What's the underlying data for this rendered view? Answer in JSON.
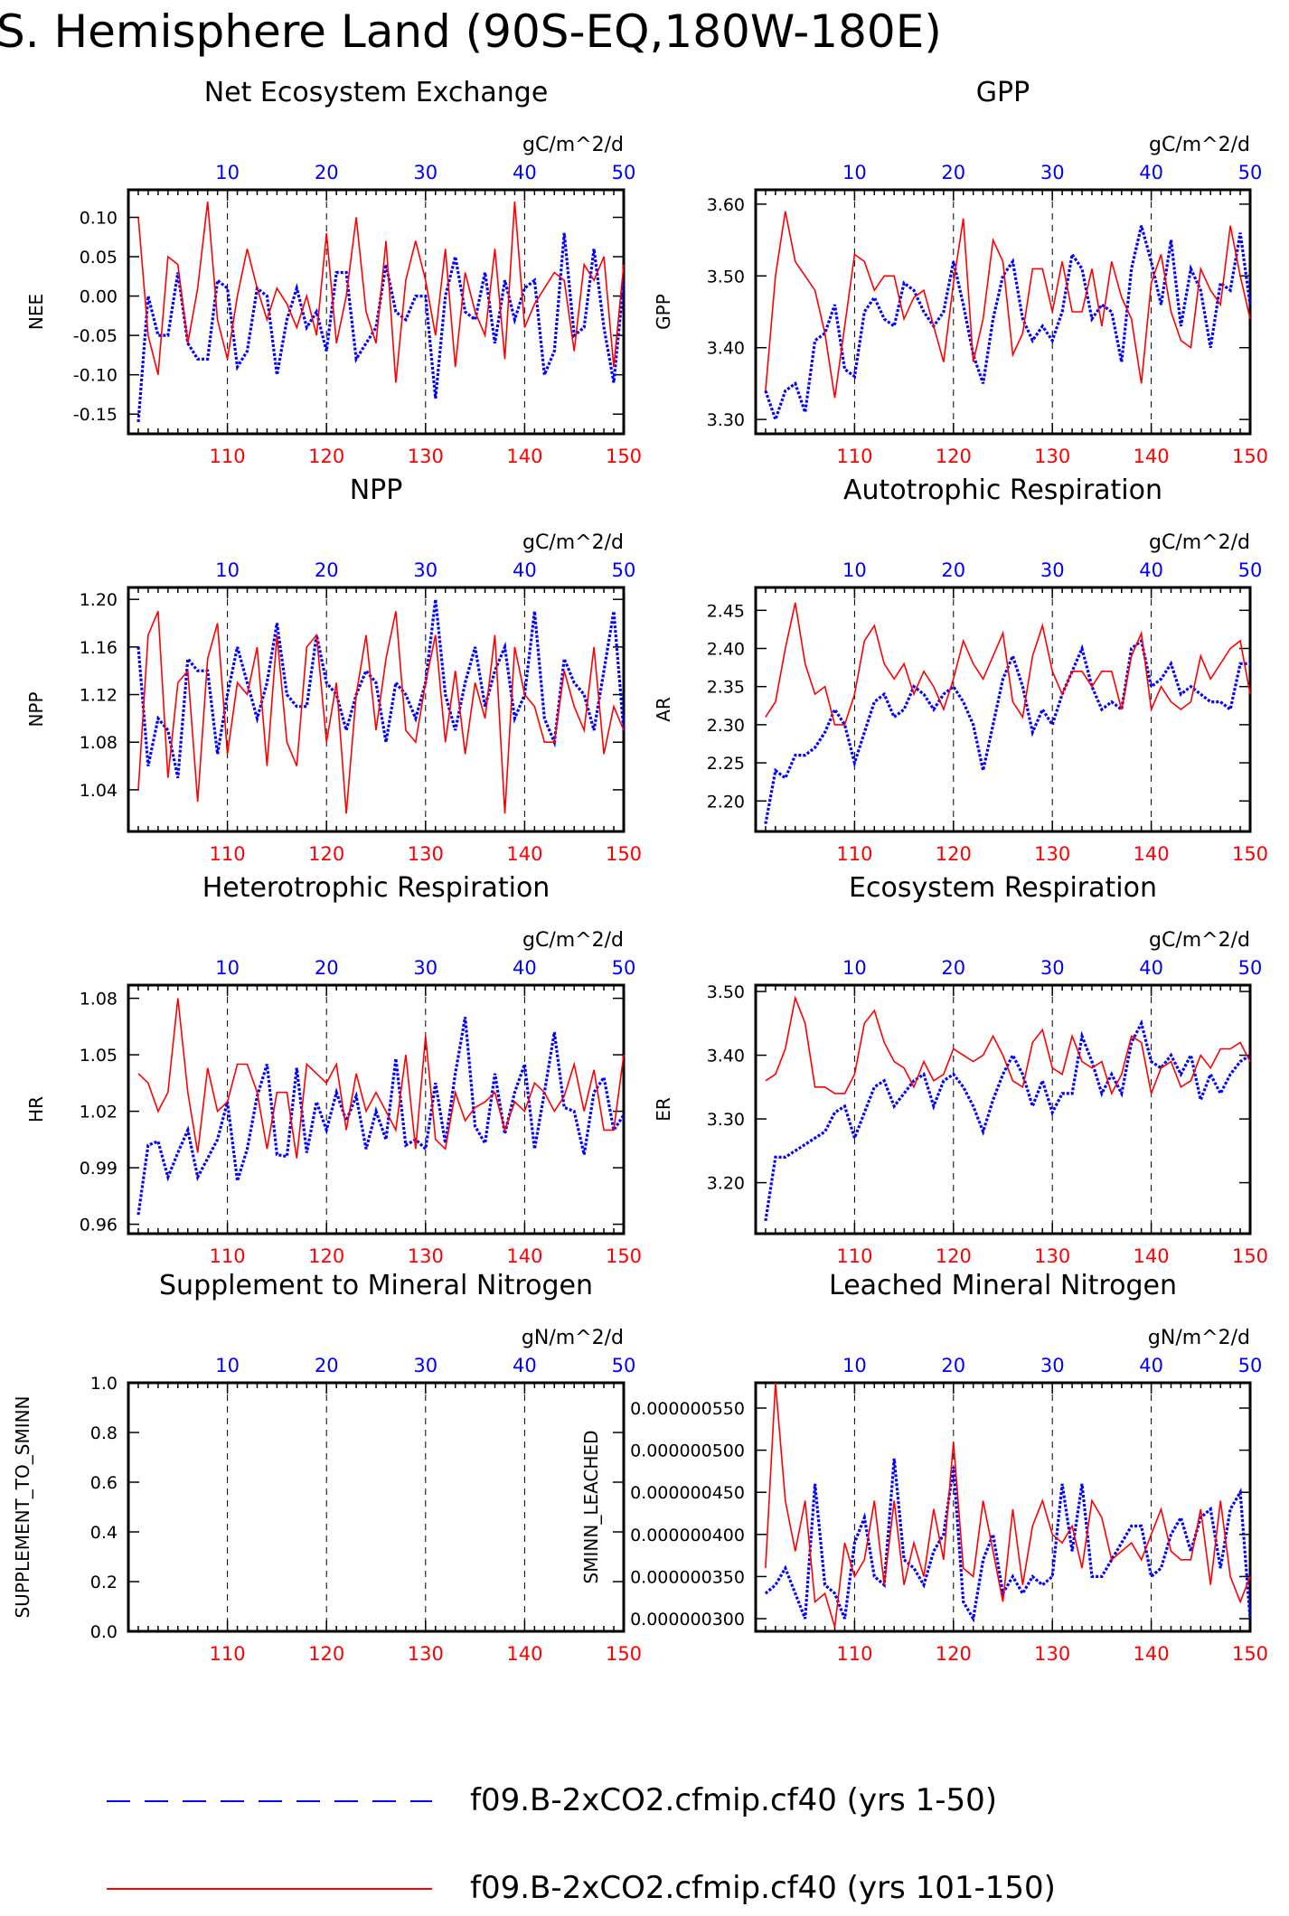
{
  "page_title": "S. Hemisphere Land (90S-EQ,180W-180E)",
  "legend": [
    {
      "label": "f09.B-2xCO2.cfmip.cf40 (yrs 1-50)",
      "color": "#0000ff",
      "style": "dashed"
    },
    {
      "label": "f09.B-2xCO2.cfmip.cf40 (yrs 101-150)",
      "color": "#ff0000",
      "style": "solid"
    }
  ],
  "colors": {
    "blue_series": "#0000ff",
    "red_series": "#ff0000",
    "axis": "#000000"
  },
  "chart_data": [
    {
      "type": "line",
      "title": "Net Ecosystem Exchange",
      "units": "gC/m^2/d",
      "ylabel": "NEE",
      "ylim": [
        -0.175,
        0.135
      ],
      "yticks": [
        -0.15,
        -0.1,
        -0.05,
        0.0,
        0.05,
        0.1
      ],
      "ytick_labels": [
        "-0.15",
        "-0.10",
        "-0.05",
        "0.00",
        "0.05",
        "0.10"
      ],
      "x_bottom_ticks": [
        "110",
        "120",
        "130",
        "140",
        "150"
      ],
      "x_top_ticks": [
        "10",
        "20",
        "30",
        "40",
        "50"
      ],
      "grid": "dashed vertical at 110,120,130,140",
      "series": [
        {
          "values": [
            -0.16,
            0.0,
            -0.05,
            -0.05,
            0.03,
            -0.06,
            -0.08,
            -0.08,
            0.02,
            0.01,
            -0.09,
            -0.07,
            0.01,
            0.0,
            -0.1,
            -0.03,
            0.01,
            -0.04,
            -0.02,
            -0.07,
            0.03,
            0.03,
            -0.08,
            -0.06,
            -0.04,
            0.04,
            -0.02,
            -0.03,
            0.0,
            0.0,
            -0.13,
            0.0,
            0.05,
            -0.02,
            -0.03,
            0.03,
            -0.06,
            0.02,
            -0.03,
            0.01,
            0.02,
            -0.1,
            -0.07,
            0.08,
            -0.05,
            -0.04,
            0.06,
            -0.04,
            -0.11,
            0.02
          ]
        },
        {
          "values": [
            0.1,
            -0.05,
            -0.1,
            0.05,
            0.04,
            -0.06,
            0.01,
            0.12,
            -0.03,
            -0.08,
            0.0,
            0.06,
            0.01,
            -0.03,
            0.01,
            -0.01,
            -0.04,
            0.0,
            -0.05,
            0.08,
            -0.06,
            0.0,
            0.1,
            -0.02,
            -0.06,
            0.07,
            -0.11,
            0.02,
            0.07,
            0.02,
            -0.05,
            0.06,
            -0.09,
            0.03,
            -0.02,
            -0.05,
            0.06,
            -0.08,
            0.12,
            -0.04,
            -0.01,
            0.01,
            0.03,
            0.02,
            -0.07,
            0.04,
            0.02,
            0.05,
            -0.09,
            0.04
          ]
        }
      ]
    },
    {
      "type": "line",
      "title": "GPP",
      "units": "gC/m^2/d",
      "ylabel": "GPP",
      "ylim": [
        3.28,
        3.62
      ],
      "yticks": [
        3.3,
        3.4,
        3.5,
        3.6
      ],
      "ytick_labels": [
        "3.30",
        "3.40",
        "3.50",
        "3.60"
      ],
      "x_bottom_ticks": [
        "110",
        "120",
        "130",
        "140",
        "150"
      ],
      "x_top_ticks": [
        "10",
        "20",
        "30",
        "40",
        "50"
      ],
      "grid": "dashed vertical at 110,120,130,140",
      "series": [
        {
          "values": [
            3.34,
            3.3,
            3.34,
            3.35,
            3.31,
            3.41,
            3.42,
            3.46,
            3.37,
            3.36,
            3.45,
            3.47,
            3.44,
            3.43,
            3.49,
            3.48,
            3.45,
            3.43,
            3.45,
            3.52,
            3.46,
            3.39,
            3.35,
            3.44,
            3.5,
            3.52,
            3.44,
            3.41,
            3.43,
            3.41,
            3.45,
            3.53,
            3.51,
            3.44,
            3.46,
            3.45,
            3.38,
            3.51,
            3.57,
            3.52,
            3.46,
            3.55,
            3.43,
            3.51,
            3.48,
            3.4,
            3.49,
            3.48,
            3.56,
            3.46
          ]
        },
        {
          "values": [
            3.34,
            3.5,
            3.59,
            3.52,
            3.5,
            3.48,
            3.42,
            3.33,
            3.43,
            3.53,
            3.52,
            3.48,
            3.5,
            3.5,
            3.44,
            3.47,
            3.48,
            3.43,
            3.38,
            3.49,
            3.58,
            3.38,
            3.44,
            3.55,
            3.52,
            3.39,
            3.42,
            3.51,
            3.51,
            3.45,
            3.52,
            3.45,
            3.45,
            3.51,
            3.43,
            3.52,
            3.47,
            3.44,
            3.35,
            3.49,
            3.53,
            3.45,
            3.41,
            3.4,
            3.51,
            3.48,
            3.46,
            3.57,
            3.5,
            3.44
          ]
        }
      ]
    },
    {
      "type": "line",
      "title": "NPP",
      "units": "gC/m^2/d",
      "ylabel": "NPP",
      "ylim": [
        1.005,
        1.21
      ],
      "yticks": [
        1.04,
        1.08,
        1.12,
        1.16,
        1.2
      ],
      "ytick_labels": [
        "1.04",
        "1.08",
        "1.12",
        "1.16",
        "1.20"
      ],
      "x_bottom_ticks": [
        "110",
        "120",
        "130",
        "140",
        "150"
      ],
      "x_top_ticks": [
        "10",
        "20",
        "30",
        "40",
        "50"
      ],
      "grid": "dashed vertical at 110,120,130,140",
      "series": [
        {
          "values": [
            1.16,
            1.06,
            1.1,
            1.09,
            1.05,
            1.15,
            1.14,
            1.14,
            1.07,
            1.12,
            1.16,
            1.13,
            1.1,
            1.13,
            1.18,
            1.12,
            1.11,
            1.11,
            1.17,
            1.13,
            1.12,
            1.09,
            1.12,
            1.14,
            1.13,
            1.08,
            1.13,
            1.12,
            1.1,
            1.13,
            1.2,
            1.12,
            1.09,
            1.13,
            1.16,
            1.11,
            1.14,
            1.16,
            1.1,
            1.12,
            1.19,
            1.1,
            1.08,
            1.15,
            1.13,
            1.12,
            1.09,
            1.14,
            1.19,
            1.09
          ]
        },
        {
          "values": [
            1.04,
            1.17,
            1.19,
            1.05,
            1.13,
            1.14,
            1.03,
            1.15,
            1.18,
            1.07,
            1.13,
            1.12,
            1.16,
            1.06,
            1.17,
            1.08,
            1.06,
            1.16,
            1.17,
            1.08,
            1.13,
            1.02,
            1.12,
            1.17,
            1.09,
            1.15,
            1.19,
            1.09,
            1.08,
            1.13,
            1.17,
            1.08,
            1.14,
            1.07,
            1.13,
            1.1,
            1.17,
            1.02,
            1.16,
            1.12,
            1.11,
            1.08,
            1.08,
            1.14,
            1.11,
            1.09,
            1.16,
            1.07,
            1.11,
            1.09
          ]
        }
      ]
    },
    {
      "type": "line",
      "title": "Autotrophic Respiration",
      "units": "gC/m^2/d",
      "ylabel": "AR",
      "ylim": [
        2.16,
        2.48
      ],
      "yticks": [
        2.2,
        2.25,
        2.3,
        2.35,
        2.4,
        2.45
      ],
      "ytick_labels": [
        "2.20",
        "2.25",
        "2.30",
        "2.35",
        "2.40",
        "2.45"
      ],
      "x_bottom_ticks": [
        "110",
        "120",
        "130",
        "140",
        "150"
      ],
      "x_top_ticks": [
        "10",
        "20",
        "30",
        "40",
        "50"
      ],
      "grid": "dashed vertical at 110,120,130,140",
      "series": [
        {
          "values": [
            2.17,
            2.24,
            2.23,
            2.26,
            2.26,
            2.27,
            2.29,
            2.32,
            2.3,
            2.25,
            2.29,
            2.33,
            2.34,
            2.31,
            2.32,
            2.35,
            2.34,
            2.32,
            2.34,
            2.35,
            2.33,
            2.3,
            2.24,
            2.3,
            2.36,
            2.39,
            2.35,
            2.29,
            2.32,
            2.3,
            2.34,
            2.37,
            2.4,
            2.35,
            2.32,
            2.33,
            2.32,
            2.4,
            2.41,
            2.35,
            2.36,
            2.38,
            2.34,
            2.35,
            2.34,
            2.33,
            2.33,
            2.32,
            2.38,
            2.38
          ]
        },
        {
          "values": [
            2.31,
            2.33,
            2.4,
            2.46,
            2.38,
            2.34,
            2.35,
            2.3,
            2.3,
            2.34,
            2.41,
            2.43,
            2.38,
            2.36,
            2.38,
            2.34,
            2.37,
            2.35,
            2.32,
            2.36,
            2.41,
            2.38,
            2.36,
            2.39,
            2.42,
            2.33,
            2.31,
            2.39,
            2.43,
            2.37,
            2.34,
            2.37,
            2.37,
            2.35,
            2.37,
            2.37,
            2.32,
            2.39,
            2.42,
            2.32,
            2.35,
            2.33,
            2.32,
            2.33,
            2.39,
            2.36,
            2.38,
            2.4,
            2.41,
            2.34
          ]
        }
      ]
    },
    {
      "type": "line",
      "title": "Heterotrophic Respiration",
      "units": "gC/m^2/d",
      "ylabel": "HR",
      "ylim": [
        0.955,
        1.087
      ],
      "yticks": [
        0.96,
        0.99,
        1.02,
        1.05,
        1.08
      ],
      "ytick_labels": [
        "0.96",
        "0.99",
        "1.02",
        "1.05",
        "1.08"
      ],
      "x_bottom_ticks": [
        "110",
        "120",
        "130",
        "140",
        "150"
      ],
      "x_top_ticks": [
        "10",
        "20",
        "30",
        "40",
        "50"
      ],
      "grid": "dashed vertical at 110,120,130,140",
      "series": [
        {
          "values": [
            0.965,
            1.002,
            1.004,
            0.985,
            0.998,
            1.01,
            0.985,
            0.995,
            1.005,
            1.025,
            0.983,
            1.0,
            1.028,
            1.045,
            0.997,
            0.996,
            1.043,
            0.998,
            1.025,
            1.01,
            1.03,
            1.015,
            1.028,
            1.0,
            1.02,
            1.005,
            1.048,
            1.002,
            1.005,
            1.0,
            1.035,
            1.003,
            1.04,
            1.07,
            1.012,
            1.003,
            1.04,
            1.008,
            1.03,
            1.045,
            1.0,
            1.03,
            1.062,
            1.022,
            1.02,
            0.997,
            1.03,
            1.038,
            1.01,
            1.018
          ]
        },
        {
          "values": [
            1.04,
            1.035,
            1.02,
            1.03,
            1.08,
            1.03,
            0.998,
            1.043,
            1.02,
            1.025,
            1.045,
            1.045,
            1.03,
            1.0,
            1.03,
            1.03,
            0.995,
            1.045,
            1.04,
            1.035,
            1.045,
            1.01,
            1.04,
            1.02,
            1.03,
            1.02,
            1.01,
            1.05,
            1.0,
            1.06,
            1.005,
            1.0,
            1.03,
            1.015,
            1.022,
            1.025,
            1.03,
            1.01,
            1.025,
            1.02,
            1.035,
            1.03,
            1.02,
            1.028,
            1.045,
            1.02,
            1.042,
            1.01,
            1.01,
            1.05
          ]
        }
      ]
    },
    {
      "type": "line",
      "title": "Ecosystem Respiration",
      "units": "gC/m^2/d",
      "ylabel": "ER",
      "ylim": [
        3.12,
        3.51
      ],
      "yticks": [
        3.2,
        3.3,
        3.4,
        3.5
      ],
      "ytick_labels": [
        "3.20",
        "3.30",
        "3.40",
        "3.50"
      ],
      "x_bottom_ticks": [
        "110",
        "120",
        "130",
        "140",
        "150"
      ],
      "x_top_ticks": [
        "10",
        "20",
        "30",
        "40",
        "50"
      ],
      "grid": "dashed vertical at 110,120,130,140",
      "series": [
        {
          "values": [
            3.14,
            3.24,
            3.24,
            3.25,
            3.26,
            3.27,
            3.28,
            3.31,
            3.32,
            3.27,
            3.31,
            3.35,
            3.36,
            3.32,
            3.34,
            3.36,
            3.37,
            3.32,
            3.36,
            3.37,
            3.35,
            3.32,
            3.28,
            3.33,
            3.37,
            3.4,
            3.37,
            3.32,
            3.36,
            3.31,
            3.34,
            3.34,
            3.43,
            3.39,
            3.34,
            3.37,
            3.34,
            3.42,
            3.45,
            3.39,
            3.38,
            3.4,
            3.37,
            3.4,
            3.33,
            3.37,
            3.34,
            3.37,
            3.39,
            3.4
          ]
        },
        {
          "values": [
            3.36,
            3.37,
            3.41,
            3.49,
            3.45,
            3.35,
            3.35,
            3.34,
            3.34,
            3.37,
            3.45,
            3.47,
            3.42,
            3.39,
            3.38,
            3.35,
            3.39,
            3.36,
            3.37,
            3.41,
            3.4,
            3.39,
            3.4,
            3.43,
            3.4,
            3.36,
            3.35,
            3.42,
            3.44,
            3.38,
            3.37,
            3.43,
            3.39,
            3.38,
            3.39,
            3.34,
            3.37,
            3.43,
            3.42,
            3.34,
            3.38,
            3.39,
            3.35,
            3.36,
            3.4,
            3.38,
            3.41,
            3.41,
            3.42,
            3.39
          ]
        }
      ]
    },
    {
      "type": "line",
      "title": "Supplement to Mineral Nitrogen",
      "units": "gN/m^2/d",
      "ylabel": "SUPPLEMENT_TO_SMINN",
      "ylim": [
        0.0,
        1.0
      ],
      "yticks": [
        0.0,
        0.2,
        0.4,
        0.6,
        0.8,
        1.0
      ],
      "ytick_labels": [
        "0.0",
        "0.2",
        "0.4",
        "0.6",
        "0.8",
        "1.0"
      ],
      "x_bottom_ticks": [
        "110",
        "120",
        "130",
        "140",
        "150"
      ],
      "x_top_ticks": [
        "10",
        "20",
        "30",
        "40",
        "50"
      ],
      "grid": "dashed vertical at 110,120,130,140",
      "series": []
    },
    {
      "type": "line",
      "title": "Leached Mineral Nitrogen",
      "units": "gN/m^2/d",
      "ylabel": "SMINN_LEACHED",
      "ylim": [
        2.85e-07,
        5.8e-07
      ],
      "yticks": [
        3e-07,
        3.5e-07,
        4e-07,
        4.5e-07,
        5e-07,
        5.5e-07
      ],
      "ytick_labels": [
        "0.000000300",
        "0.000000350",
        "0.000000400",
        "0.000000450",
        "0.000000500",
        "0.000000550"
      ],
      "x_bottom_ticks": [
        "110",
        "120",
        "130",
        "140",
        "150"
      ],
      "x_top_ticks": [
        "10",
        "20",
        "30",
        "40",
        "50"
      ],
      "grid": "dashed vertical at 110,120,130,140",
      "series": [
        {
          "values": [
            3.3e-07,
            3.4e-07,
            3.6e-07,
            3.3e-07,
            3e-07,
            4.6e-07,
            3.4e-07,
            3.3e-07,
            3e-07,
            3.9e-07,
            4.2e-07,
            3.5e-07,
            3.4e-07,
            4.9e-07,
            3.7e-07,
            3.6e-07,
            3.4e-07,
            3.8e-07,
            4e-07,
            4.8e-07,
            3.2e-07,
            3e-07,
            3.7e-07,
            4e-07,
            3.3e-07,
            3.5e-07,
            3.3e-07,
            3.5e-07,
            3.4e-07,
            3.5e-07,
            4.6e-07,
            3.8e-07,
            4.6e-07,
            3.5e-07,
            3.5e-07,
            3.7e-07,
            3.9e-07,
            4.1e-07,
            4.1e-07,
            3.5e-07,
            3.6e-07,
            4e-07,
            4.2e-07,
            3.8e-07,
            4.2e-07,
            4.3e-07,
            3.6e-07,
            4.3e-07,
            4.5e-07,
            3e-07
          ]
        },
        {
          "values": [
            3.6e-07,
            5.8e-07,
            4.4e-07,
            3.8e-07,
            4.4e-07,
            3.2e-07,
            3.3e-07,
            2.9e-07,
            3.9e-07,
            3.5e-07,
            3.7e-07,
            4.4e-07,
            3.4e-07,
            4.4e-07,
            3.4e-07,
            3.9e-07,
            3.5e-07,
            4.3e-07,
            3.7e-07,
            5.1e-07,
            3.6e-07,
            3.5e-07,
            4.4e-07,
            3.8e-07,
            3.2e-07,
            4.3e-07,
            3.4e-07,
            4.1e-07,
            4.4e-07,
            4e-07,
            3.9e-07,
            4.1e-07,
            3.6e-07,
            4.4e-07,
            4.2e-07,
            3.7e-07,
            3.8e-07,
            3.9e-07,
            3.7e-07,
            4e-07,
            4.3e-07,
            3.8e-07,
            3.7e-07,
            3.7e-07,
            4.3e-07,
            3.4e-07,
            4.4e-07,
            3.5e-07,
            3.2e-07,
            3.5e-07
          ]
        }
      ]
    }
  ]
}
